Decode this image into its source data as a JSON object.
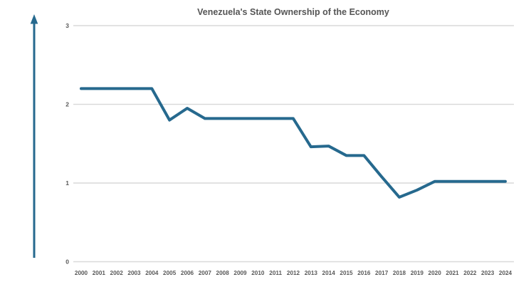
{
  "chart_data": {
    "type": "line",
    "title": "Venezuela's State Ownership of the Economy",
    "x": [
      "2000",
      "2001",
      "2002",
      "2003",
      "2004",
      "2005",
      "2006",
      "2007",
      "2008",
      "2009",
      "2010",
      "2011",
      "2012",
      "2013",
      "2014",
      "2015",
      "2016",
      "2017",
      "2018",
      "2019",
      "2020",
      "2021",
      "2022",
      "2023",
      "2024"
    ],
    "values": [
      2.2,
      2.2,
      2.2,
      2.2,
      2.2,
      1.8,
      1.95,
      1.82,
      1.82,
      1.82,
      1.82,
      1.82,
      1.82,
      1.46,
      1.47,
      1.35,
      1.35,
      1.08,
      0.82,
      0.91,
      1.02,
      1.02,
      1.02,
      1.02,
      1.02
    ],
    "xlabel": "",
    "ylabel": "",
    "ylim": [
      0,
      3
    ],
    "yticks": [
      "0",
      "1",
      "2",
      "3"
    ],
    "grid": true,
    "legend": false,
    "line_color": "#26698e",
    "grid_color": "#d9d9d9",
    "tick_label_color": "#595959",
    "title_color": "#555555",
    "arrow_color": "#26698e",
    "background_color": "#ffffff",
    "icons": {
      "up-arrow-icon": "↑"
    }
  }
}
